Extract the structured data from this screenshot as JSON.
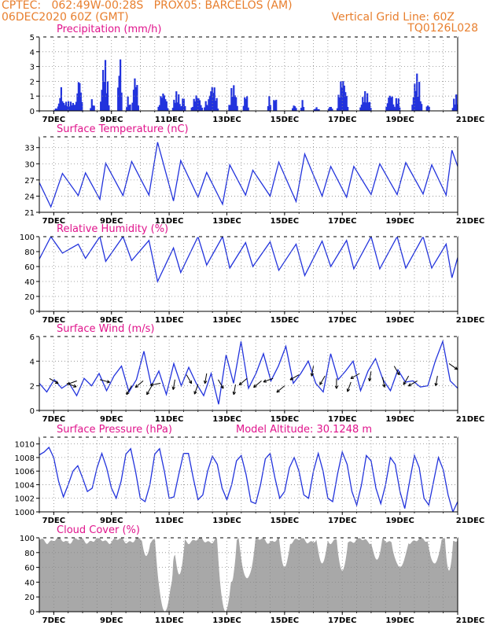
{
  "header": {
    "line1": "CPTEC:   062:49W-00:28S   PROX05: BARCELOS (AM)",
    "line2_left": "06DEC2020 60Z (GMT)",
    "line2_right": "Vertical Grid Line: 60Z",
    "line3_right": "TQ0126L028"
  },
  "colors": {
    "title": "#e0148c",
    "header": "#e87f2e",
    "series": "#2233dd",
    "cloud": "#a8a8a8",
    "grid": "#888888"
  },
  "x_axis": {
    "start_day": 6.5,
    "end_day": 21,
    "tick_days": [
      7,
      9,
      11,
      13,
      15,
      17,
      19,
      21
    ],
    "tick_labels": [
      "7DEC",
      "9DEC",
      "11DEC",
      "13DEC",
      "15DEC",
      "17DEC",
      "19DEC",
      "21DEC"
    ]
  },
  "chart_data": [
    {
      "id": "precip",
      "type": "bar",
      "title": "Precipitation (mm/h)",
      "ylim": [
        0,
        5
      ],
      "yticks": [
        0,
        1,
        2,
        3,
        4,
        5
      ],
      "events": [
        [
          7.0,
          1.0,
          0.6
        ],
        [
          7.15,
          0.2,
          1.6
        ],
        [
          7.75,
          0.25,
          2.3
        ],
        [
          8.25,
          0.15,
          0.8
        ],
        [
          8.6,
          0.3,
          3.5
        ],
        [
          9.2,
          0.15,
          4.1
        ],
        [
          9.5,
          0.15,
          1.0
        ],
        [
          9.7,
          0.25,
          2.5
        ],
        [
          10.6,
          0.35,
          1.3
        ],
        [
          11.1,
          0.3,
          1.3
        ],
        [
          11.4,
          0.15,
          1.0
        ],
        [
          11.75,
          0.4,
          1.1
        ],
        [
          12.2,
          0.15,
          0.7
        ],
        [
          12.3,
          0.4,
          1.8
        ],
        [
          13.05,
          0.3,
          1.8
        ],
        [
          13.55,
          0.2,
          1.2
        ],
        [
          14.4,
          0.1,
          1.0
        ],
        [
          14.6,
          0.1,
          1.4
        ],
        [
          15.25,
          0.15,
          0.4
        ],
        [
          15.55,
          0.1,
          0.7
        ],
        [
          16.0,
          0.2,
          0.2
        ],
        [
          16.5,
          0.15,
          0.3
        ],
        [
          16.8,
          0.4,
          2.3
        ],
        [
          17.6,
          0.4,
          1.3
        ],
        [
          18.5,
          0.3,
          1.2
        ],
        [
          18.8,
          0.2,
          1.0
        ],
        [
          19.4,
          0.35,
          2.5
        ],
        [
          19.9,
          0.1,
          0.5
        ],
        [
          20.8,
          0.25,
          1.1
        ]
      ]
    },
    {
      "id": "temp",
      "type": "line",
      "title": "Surface Temperature (nC)",
      "ylim": [
        21,
        35
      ],
      "yticks": [
        21,
        24,
        27,
        30,
        33
      ],
      "base": 23.8,
      "amp": 4.2,
      "peaks": [
        7.3,
        8.1,
        8.8,
        9.7,
        10.6,
        11.4,
        12.3,
        13.1,
        13.9,
        14.8,
        15.7,
        16.6,
        17.4,
        18.3,
        19.2,
        20.1,
        20.8
      ],
      "peak_values": [
        28.2,
        28.3,
        30.1,
        30.4,
        34.0,
        30.6,
        28.4,
        29.8,
        28.8,
        30.3,
        31.8,
        29.5,
        29.5,
        30.0,
        30.2,
        29.8,
        32.5
      ],
      "min_values": [
        22.0,
        24.1,
        23.4,
        24.1,
        24.2,
        23.1,
        23.8,
        22.5,
        24.2,
        24.0,
        23.0,
        24.0,
        23.8,
        24.3,
        24.3,
        24.4,
        24.2
      ]
    },
    {
      "id": "rh",
      "type": "line",
      "title": "Relative Humidity (%)",
      "ylim": [
        0,
        100
      ],
      "yticks": [
        0,
        20,
        40,
        60,
        80,
        100
      ],
      "peaks": [
        7.3,
        8.1,
        8.8,
        9.7,
        10.6,
        11.4,
        12.3,
        13.1,
        13.9,
        14.8,
        15.7,
        16.6,
        17.4,
        18.3,
        19.2,
        20.1,
        20.8
      ],
      "min_values": [
        78,
        71,
        67,
        68,
        40,
        52,
        62,
        58,
        60,
        55,
        48,
        60,
        57,
        57,
        58,
        58,
        45
      ],
      "max_values": [
        100,
        90,
        100,
        100,
        95,
        85,
        100,
        100,
        92,
        93,
        90,
        94,
        95,
        100,
        100,
        100,
        90
      ]
    },
    {
      "id": "wind",
      "type": "line",
      "title": "Surface Wind (m/s)",
      "ylim": [
        0,
        6
      ],
      "yticks": [
        0,
        2,
        4,
        6
      ],
      "values": [
        2.2,
        1.5,
        2.5,
        1.8,
        2.2,
        1.2,
        2.6,
        2.0,
        3.0,
        1.6,
        2.8,
        3.6,
        1.5,
        2.5,
        4.8,
        2.0,
        3.2,
        1.3,
        3.8,
        2.0,
        3.5,
        2.2,
        1.2,
        3.0,
        0.5,
        4.5,
        2.2,
        5.6,
        1.8,
        3.0,
        4.6,
        2.4,
        3.6,
        5.2,
        2.2,
        3.0,
        4.0,
        2.2,
        1.5,
        4.6,
        2.5,
        3.2,
        4.0,
        1.6,
        3.2,
        4.2,
        2.5,
        1.6,
        3.3,
        2.3,
        2.4,
        1.9,
        2.0,
        4.0,
        5.6,
        2.4,
        1.8
      ],
      "arrows": [
        [
          6.85,
          2.6,
          -30
        ],
        [
          7.45,
          2.2,
          -20
        ],
        [
          7.8,
          2.4,
          -160
        ],
        [
          8.6,
          2.5,
          -15
        ],
        [
          9.7,
          2.0,
          -120
        ],
        [
          10.1,
          2.4,
          -140
        ],
        [
          10.4,
          2.0,
          -120
        ],
        [
          10.7,
          2.2,
          -170
        ],
        [
          11.2,
          2.5,
          -100
        ],
        [
          11.6,
          2.9,
          -60
        ],
        [
          12.0,
          2.1,
          -110
        ],
        [
          12.3,
          3.0,
          -100
        ],
        [
          12.7,
          2.5,
          -60
        ],
        [
          13.3,
          2.1,
          -100
        ],
        [
          13.7,
          2.6,
          -140
        ],
        [
          14.2,
          2.4,
          -140
        ],
        [
          14.6,
          2.6,
          -160
        ],
        [
          15.0,
          2.0,
          -140
        ],
        [
          15.5,
          2.9,
          -150
        ],
        [
          16.0,
          3.6,
          -100
        ],
        [
          16.4,
          2.8,
          -120
        ],
        [
          16.8,
          2.6,
          -90
        ],
        [
          17.3,
          2.3,
          -110
        ],
        [
          17.6,
          3.0,
          -150
        ],
        [
          18.0,
          3.2,
          -100
        ],
        [
          18.4,
          2.7,
          -80
        ],
        [
          18.8,
          3.6,
          -60
        ],
        [
          19.3,
          2.8,
          -120
        ],
        [
          19.6,
          2.4,
          -150
        ],
        [
          20.3,
          2.8,
          -100
        ],
        [
          20.7,
          3.8,
          -35
        ]
      ]
    },
    {
      "id": "pres",
      "type": "line",
      "title": "Surface Pressure (hPa)",
      "subtitle": "Model Altitude: 30.1248 m",
      "ylim": [
        1000,
        1011
      ],
      "yticks": [
        1000,
        1002,
        1004,
        1006,
        1008,
        1010
      ],
      "values": [
        1008.4,
        1008.8,
        1009.5,
        1008.0,
        1004.5,
        1002.2,
        1004.0,
        1006.0,
        1006.8,
        1005.0,
        1003.0,
        1003.5,
        1006.5,
        1008.6,
        1006.5,
        1003.5,
        1002.0,
        1004.5,
        1008.5,
        1009.3,
        1006.0,
        1002.0,
        1001.5,
        1004.0,
        1008.5,
        1009.3,
        1006.0,
        1002.0,
        1002.2,
        1005.5,
        1008.6,
        1008.6,
        1005.0,
        1001.8,
        1002.5,
        1006.0,
        1008.2,
        1007.0,
        1003.5,
        1001.8,
        1004.0,
        1007.5,
        1008.3,
        1005.5,
        1001.5,
        1001.2,
        1004.0,
        1007.8,
        1008.6,
        1005.0,
        1002.0,
        1003.0,
        1006.5,
        1008.0,
        1006.0,
        1002.5,
        1002.0,
        1006.0,
        1008.6,
        1006.0,
        1002.0,
        1001.5,
        1005.5,
        1008.8,
        1007.0,
        1003.0,
        1001.0,
        1004.0,
        1008.3,
        1007.5,
        1003.5,
        1001.2,
        1004.0,
        1008.0,
        1007.0,
        1003.0,
        1000.5,
        1004.5,
        1008.3,
        1006.5,
        1002.0,
        1001.0,
        1004.5,
        1008.0,
        1006.2,
        1002.5,
        1000.0,
        1001.5
      ]
    },
    {
      "id": "cloud",
      "type": "area",
      "title": "Cloud Cover (%)",
      "ylim": [
        0,
        100
      ],
      "yticks": [
        0,
        20,
        40,
        60,
        80,
        100
      ],
      "base": 96,
      "dips": [
        [
          10.85,
          0.35,
          0
        ],
        [
          11.0,
          0.15,
          35
        ],
        [
          11.35,
          0.2,
          50
        ],
        [
          12.95,
          0.3,
          0
        ],
        [
          13.15,
          0.2,
          40
        ],
        [
          13.7,
          0.3,
          45
        ],
        [
          10.2,
          0.15,
          75
        ],
        [
          15.0,
          0.2,
          60
        ],
        [
          16.3,
          0.2,
          65
        ],
        [
          17.0,
          0.2,
          55
        ],
        [
          18.2,
          0.2,
          70
        ],
        [
          19.0,
          0.3,
          60
        ],
        [
          20.2,
          0.25,
          65
        ],
        [
          20.7,
          0.15,
          55
        ]
      ]
    }
  ]
}
